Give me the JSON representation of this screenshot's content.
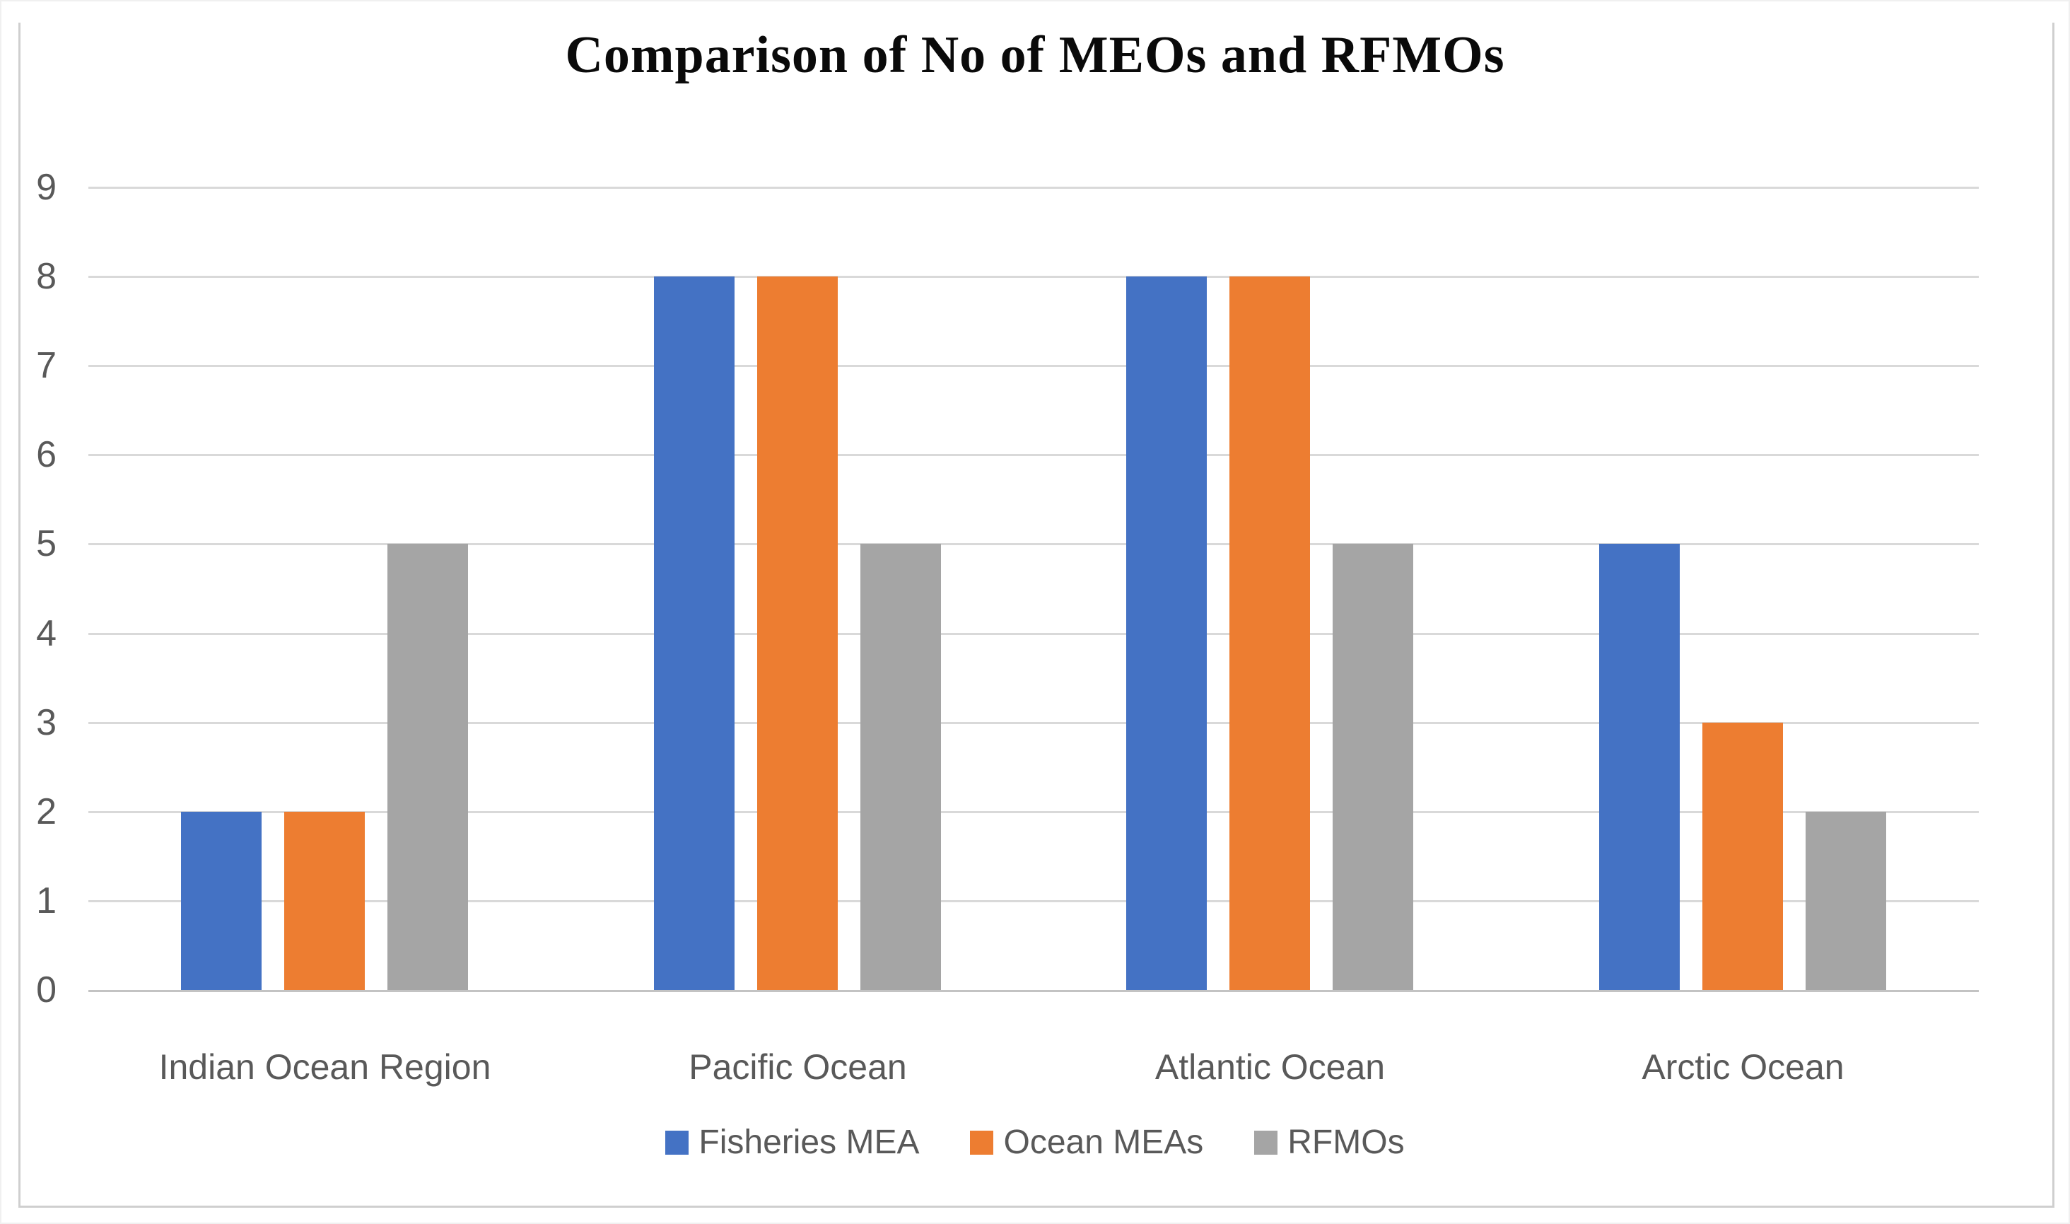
{
  "chart_data": {
    "type": "bar",
    "title": "Comparison of No of MEOs and RFMOs",
    "categories": [
      "Indian Ocean Region",
      "Pacific Ocean",
      "Atlantic Ocean",
      "Arctic Ocean"
    ],
    "series": [
      {
        "name": "Fisheries MEA",
        "color": "#4472C4",
        "values": [
          2,
          8,
          8,
          5
        ]
      },
      {
        "name": "Ocean MEAs",
        "color": "#ED7D31",
        "values": [
          2,
          8,
          8,
          3
        ]
      },
      {
        "name": "RFMOs",
        "color": "#A5A5A5",
        "values": [
          5,
          5,
          5,
          2
        ]
      }
    ],
    "xlabel": "",
    "ylabel": "",
    "ylim": [
      0,
      9
    ],
    "yticks": [
      0,
      1,
      2,
      3,
      4,
      5,
      6,
      7,
      8,
      9
    ],
    "grid": true,
    "legend_position": "bottom"
  },
  "colors": {
    "gridline": "#d9d9d9",
    "axis_line": "#c3c3c3",
    "tick_label_text": "#595959",
    "category_label_text": "#595959",
    "legend_text": "#595959",
    "title_text": "#0a0a0a",
    "frame_border": "#cfcfcf",
    "background": "#ffffff"
  }
}
